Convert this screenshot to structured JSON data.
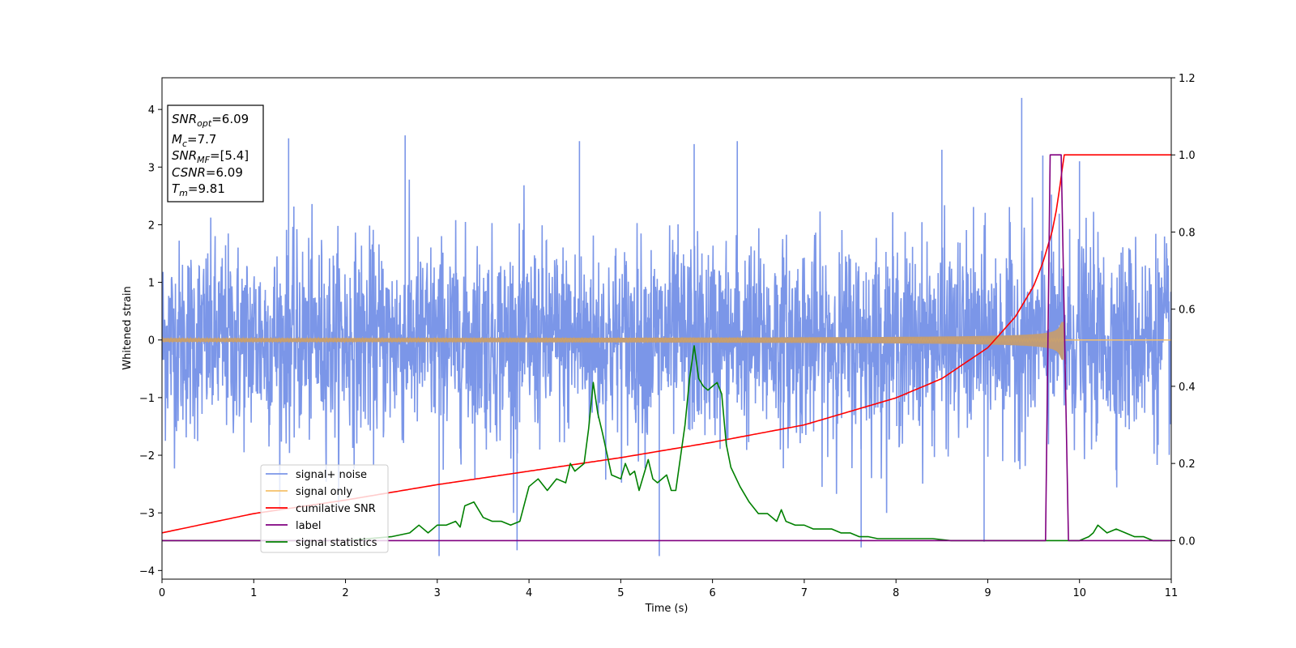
{
  "chart_data": {
    "type": "line",
    "xlabel": "Time (s)",
    "ylabel": "Whitened strain",
    "xlim": [
      0,
      11
    ],
    "ylim": [
      -4.15,
      4.55
    ],
    "y2lim": [
      -0.1,
      1.2
    ],
    "xticks": [
      0,
      1,
      2,
      3,
      4,
      5,
      6,
      7,
      8,
      9,
      10,
      11
    ],
    "yticks": [
      -4,
      -3,
      -2,
      -1,
      0,
      1,
      2,
      3,
      4
    ],
    "yticklabels": [
      "−4",
      "−3",
      "−2",
      "−1",
      "0",
      "1",
      "2",
      "3",
      "4"
    ],
    "y2ticks": [
      0.0,
      0.2,
      0.4,
      0.6,
      0.8,
      1.0,
      1.2
    ],
    "y2ticklabels": [
      "0.0",
      "0.2",
      "0.4",
      "0.6",
      "0.8",
      "1.0",
      "1.2"
    ],
    "grid": false,
    "legend_location": "lower-left",
    "info_box": {
      "lines": [
        {
          "sym": "SNR",
          "sub": "opt",
          "val": "=6.09"
        },
        {
          "sym": "M",
          "sub": "c",
          "val": "=7.7"
        },
        {
          "sym": "SNR",
          "sub": "MF",
          "val": "=[5.4]"
        },
        {
          "sym": "CSNR",
          "sub": "",
          "val": "=6.09"
        },
        {
          "sym": "T",
          "sub": "m",
          "val": "=9.81"
        }
      ]
    },
    "series": [
      {
        "name": "signal+ noise",
        "axis": "left",
        "color": "#7b96e8",
        "noise_std": 0.85,
        "spikes": [
          [
            1.38,
            3.5
          ],
          [
            2.65,
            3.55
          ],
          [
            3.02,
            -3.75
          ],
          [
            3.87,
            -3.65
          ],
          [
            4.55,
            3.45
          ],
          [
            5.42,
            -3.75
          ],
          [
            5.8,
            3.4
          ],
          [
            6.27,
            3.45
          ],
          [
            7.62,
            -3.6
          ],
          [
            8.5,
            3.3
          ],
          [
            8.96,
            -3.5
          ],
          [
            9.37,
            4.2
          ],
          [
            9.6,
            3.2
          ],
          [
            10.0,
            3.1
          ]
        ]
      },
      {
        "name": "signal only",
        "axis": "left",
        "color": "#f5c06a",
        "overlay_color": "#c09c78",
        "t_merger": 9.81,
        "amp_start": 0.03,
        "amp_end": 0.8,
        "end_time": 9.83
      },
      {
        "name": "cumilative SNR",
        "axis": "right",
        "color": "#ff0000",
        "x": [
          0,
          1,
          2,
          3,
          4,
          5,
          6,
          7,
          8,
          8.5,
          9,
          9.3,
          9.5,
          9.6,
          9.7,
          9.75,
          9.8,
          9.83,
          10,
          11
        ],
        "y": [
          0.02,
          0.07,
          0.105,
          0.145,
          0.18,
          0.215,
          0.255,
          0.3,
          0.37,
          0.42,
          0.5,
          0.58,
          0.66,
          0.72,
          0.8,
          0.86,
          0.94,
          1.0,
          1.0,
          1.0
        ]
      },
      {
        "name": "label",
        "axis": "right",
        "color": "#800080",
        "x": [
          0,
          9.63,
          9.68,
          9.8,
          9.88,
          11
        ],
        "y": [
          0,
          0,
          1.0,
          1.0,
          0,
          0
        ]
      },
      {
        "name": "signal statistics",
        "axis": "right",
        "color": "#008000",
        "x": [
          0,
          1.0,
          2.0,
          2.5,
          2.7,
          2.8,
          2.9,
          3.0,
          3.1,
          3.2,
          3.25,
          3.3,
          3.4,
          3.5,
          3.6,
          3.7,
          3.8,
          3.9,
          4.0,
          4.1,
          4.2,
          4.3,
          4.4,
          4.45,
          4.5,
          4.6,
          4.65,
          4.7,
          4.75,
          4.8,
          4.9,
          5.0,
          5.05,
          5.1,
          5.15,
          5.2,
          5.3,
          5.35,
          5.4,
          5.5,
          5.55,
          5.6,
          5.7,
          5.75,
          5.8,
          5.85,
          5.9,
          5.95,
          6.0,
          6.05,
          6.1,
          6.15,
          6.2,
          6.3,
          6.4,
          6.5,
          6.6,
          6.7,
          6.75,
          6.8,
          6.9,
          7.0,
          7.1,
          7.2,
          7.3,
          7.4,
          7.5,
          7.6,
          7.7,
          7.8,
          7.9,
          8.0,
          8.1,
          8.2,
          8.4,
          8.6,
          8.8,
          9.0,
          9.5,
          9.8,
          9.9,
          10.0,
          10.1,
          10.15,
          10.2,
          10.3,
          10.4,
          10.5,
          10.6,
          10.7,
          10.8,
          10.9,
          11.0
        ],
        "y": [
          0.0,
          0.0,
          0.0,
          0.01,
          0.02,
          0.04,
          0.02,
          0.04,
          0.04,
          0.05,
          0.035,
          0.09,
          0.1,
          0.06,
          0.05,
          0.05,
          0.04,
          0.05,
          0.14,
          0.16,
          0.13,
          0.16,
          0.15,
          0.2,
          0.18,
          0.2,
          0.29,
          0.41,
          0.33,
          0.28,
          0.17,
          0.16,
          0.2,
          0.17,
          0.18,
          0.13,
          0.21,
          0.16,
          0.15,
          0.17,
          0.13,
          0.13,
          0.3,
          0.42,
          0.505,
          0.42,
          0.4,
          0.39,
          0.4,
          0.41,
          0.38,
          0.25,
          0.19,
          0.14,
          0.1,
          0.07,
          0.07,
          0.05,
          0.08,
          0.05,
          0.04,
          0.04,
          0.03,
          0.03,
          0.03,
          0.02,
          0.02,
          0.01,
          0.01,
          0.005,
          0.005,
          0.005,
          0.005,
          0.005,
          0.005,
          0.0,
          0.0,
          0.0,
          0.0,
          0.0,
          0.0,
          0.0,
          0.01,
          0.02,
          0.04,
          0.02,
          0.03,
          0.02,
          0.01,
          0.01,
          0.0,
          0.0,
          0.0
        ]
      }
    ]
  }
}
